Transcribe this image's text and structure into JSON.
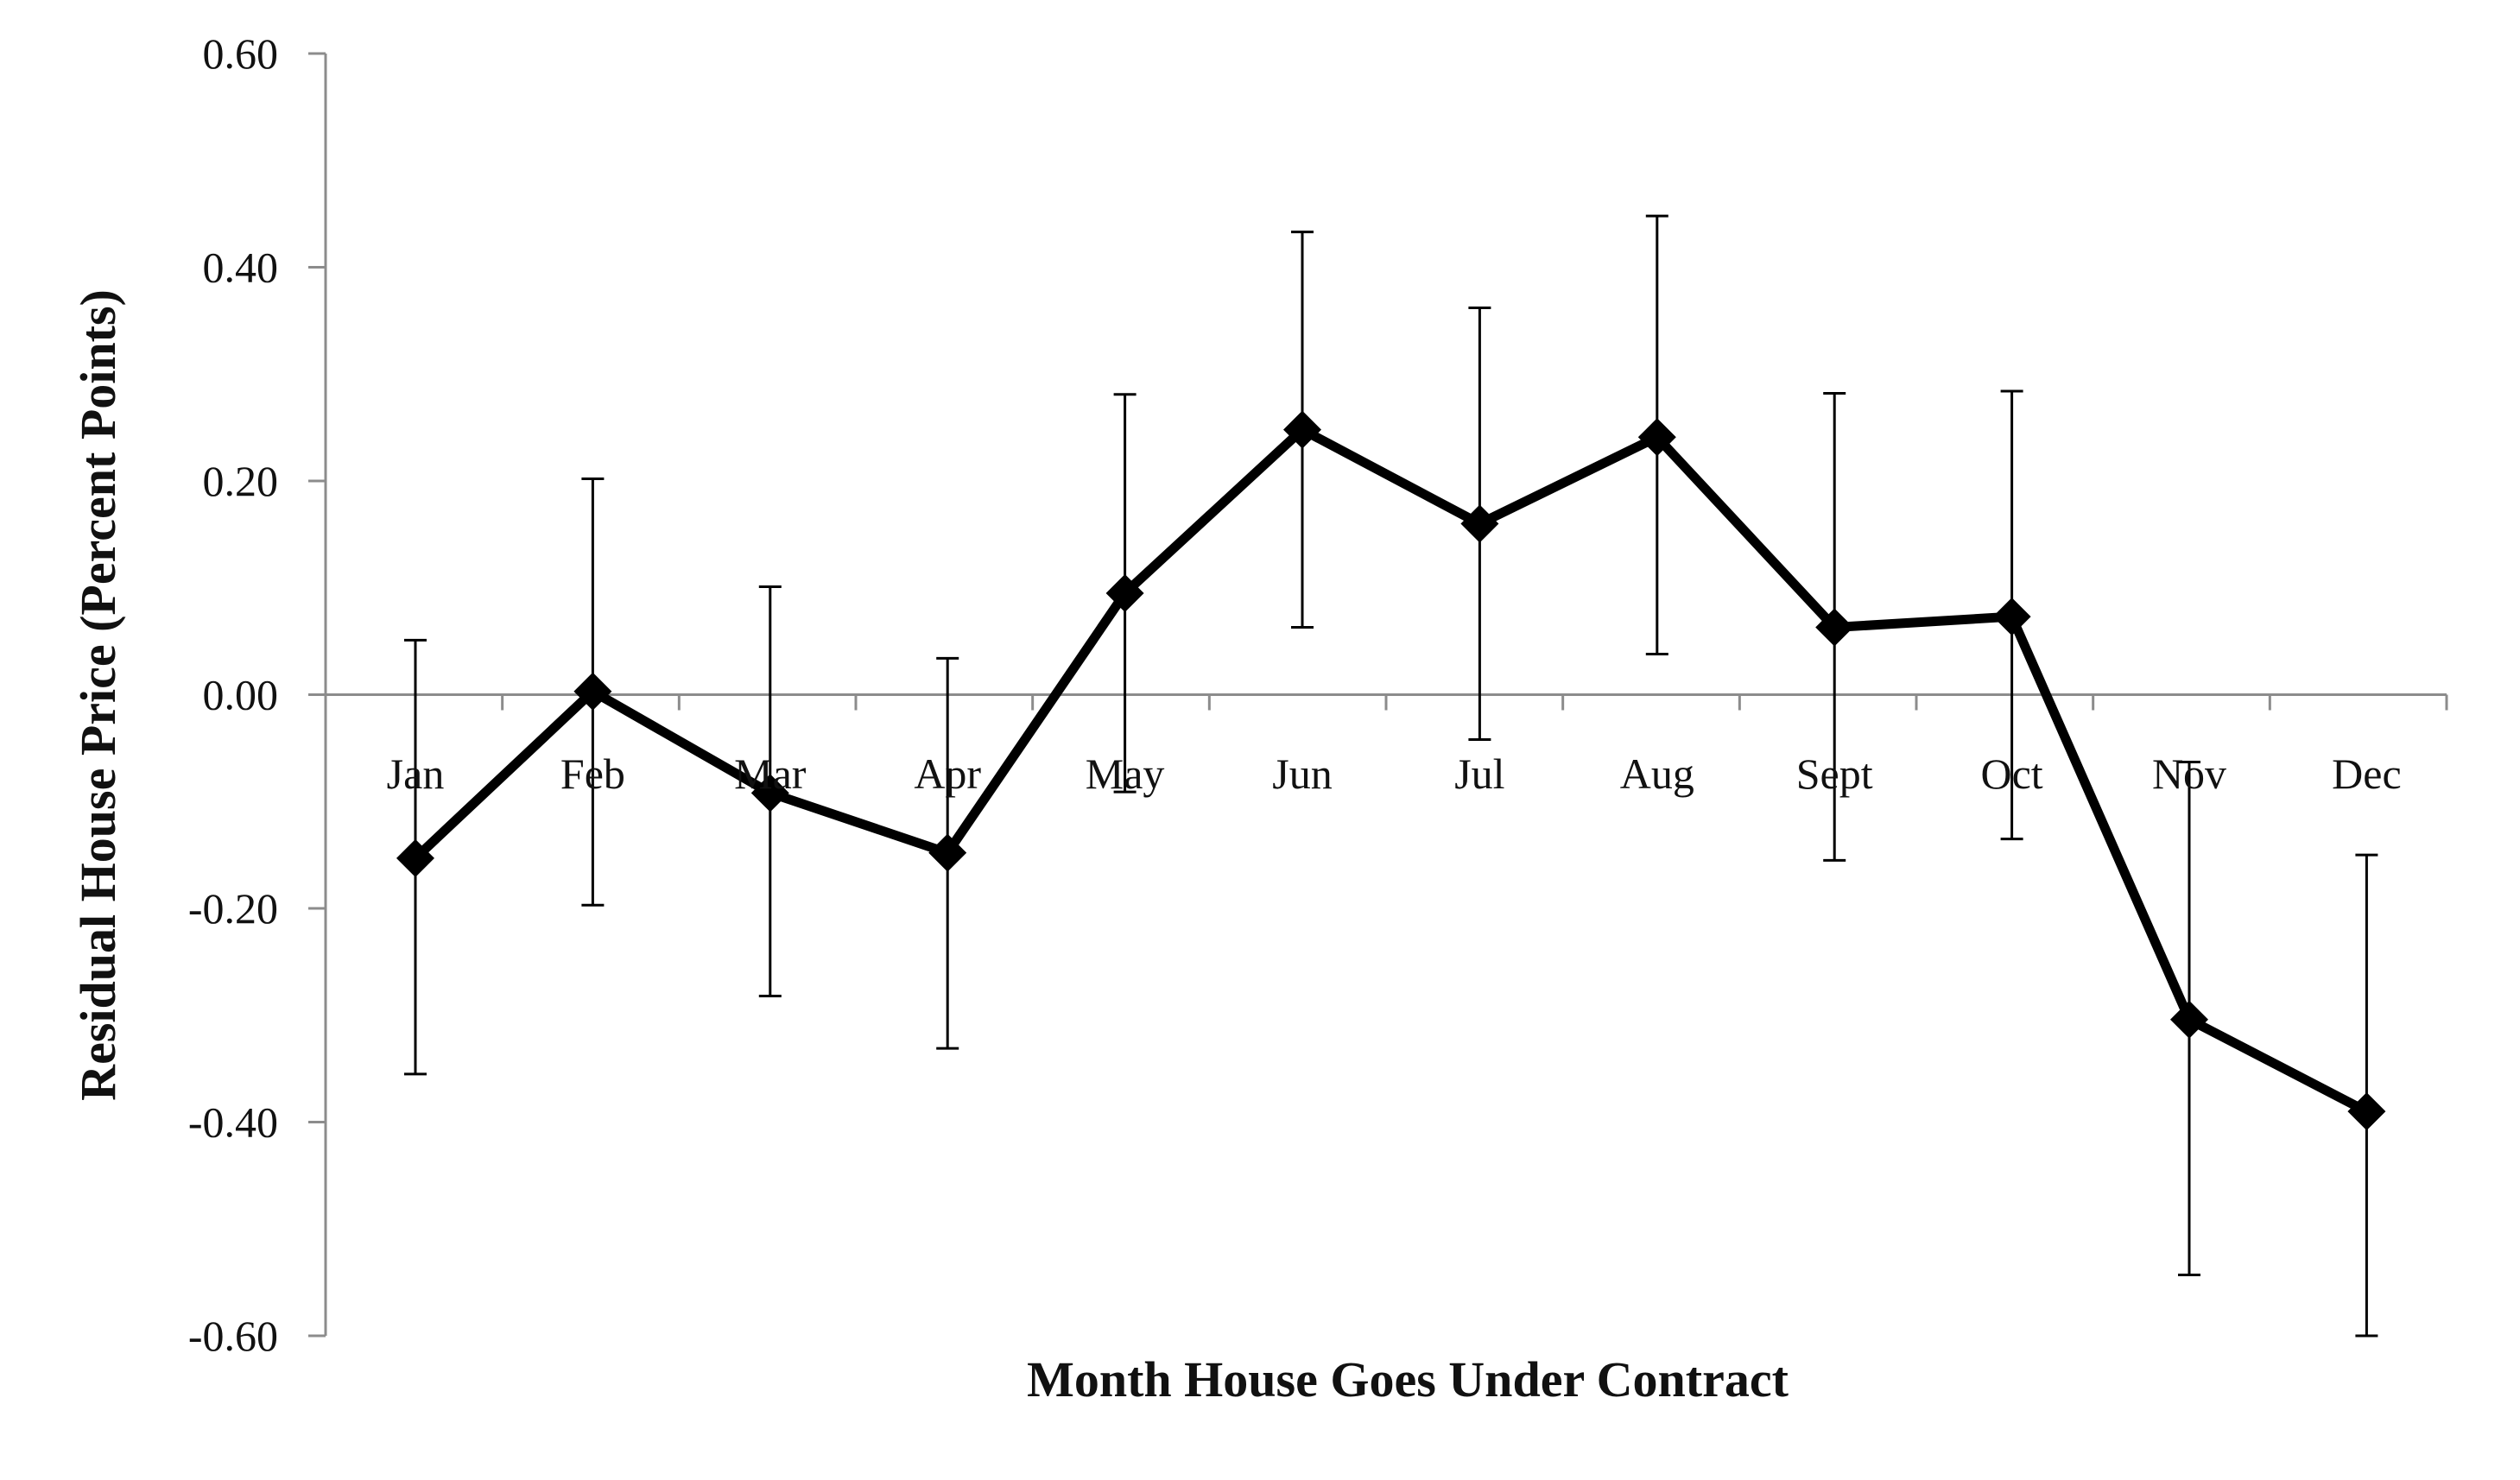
{
  "chart_data": {
    "type": "line",
    "title": "",
    "xlabel": "Month House Goes Under Contract",
    "ylabel": "Residual House Price (Percent Points)",
    "ylim": [
      -0.6,
      0.6
    ],
    "yticks": [
      0.6,
      0.4,
      0.2,
      0.0,
      -0.2,
      -0.4,
      -0.6
    ],
    "ytick_labels": [
      "0.60",
      "0.40",
      "0.20",
      "0.00",
      "-0.20",
      "-0.40",
      "-0.60"
    ],
    "grid": false,
    "legend": "none",
    "categories": [
      "Jan",
      "Feb",
      "Mar",
      "Apr",
      "May",
      "Jun",
      "Jul",
      "Aug",
      "Sept",
      "Oct",
      "Nov",
      "Dec"
    ],
    "series": [
      {
        "values": [
          -0.153,
          0.003,
          -0.092,
          -0.148,
          0.095,
          0.248,
          0.16,
          0.241,
          0.063,
          0.073,
          -0.304,
          -0.39
        ],
        "error_low": [
          -0.355,
          -0.197,
          -0.282,
          -0.331,
          -0.091,
          0.063,
          -0.042,
          0.038,
          -0.155,
          -0.135,
          -0.543,
          -0.6
        ],
        "error_high": [
          0.051,
          0.202,
          0.101,
          0.034,
          0.281,
          0.433,
          0.362,
          0.448,
          0.282,
          0.284,
          -0.063,
          -0.15
        ],
        "color": "#000000",
        "marker": "diamond"
      }
    ]
  }
}
